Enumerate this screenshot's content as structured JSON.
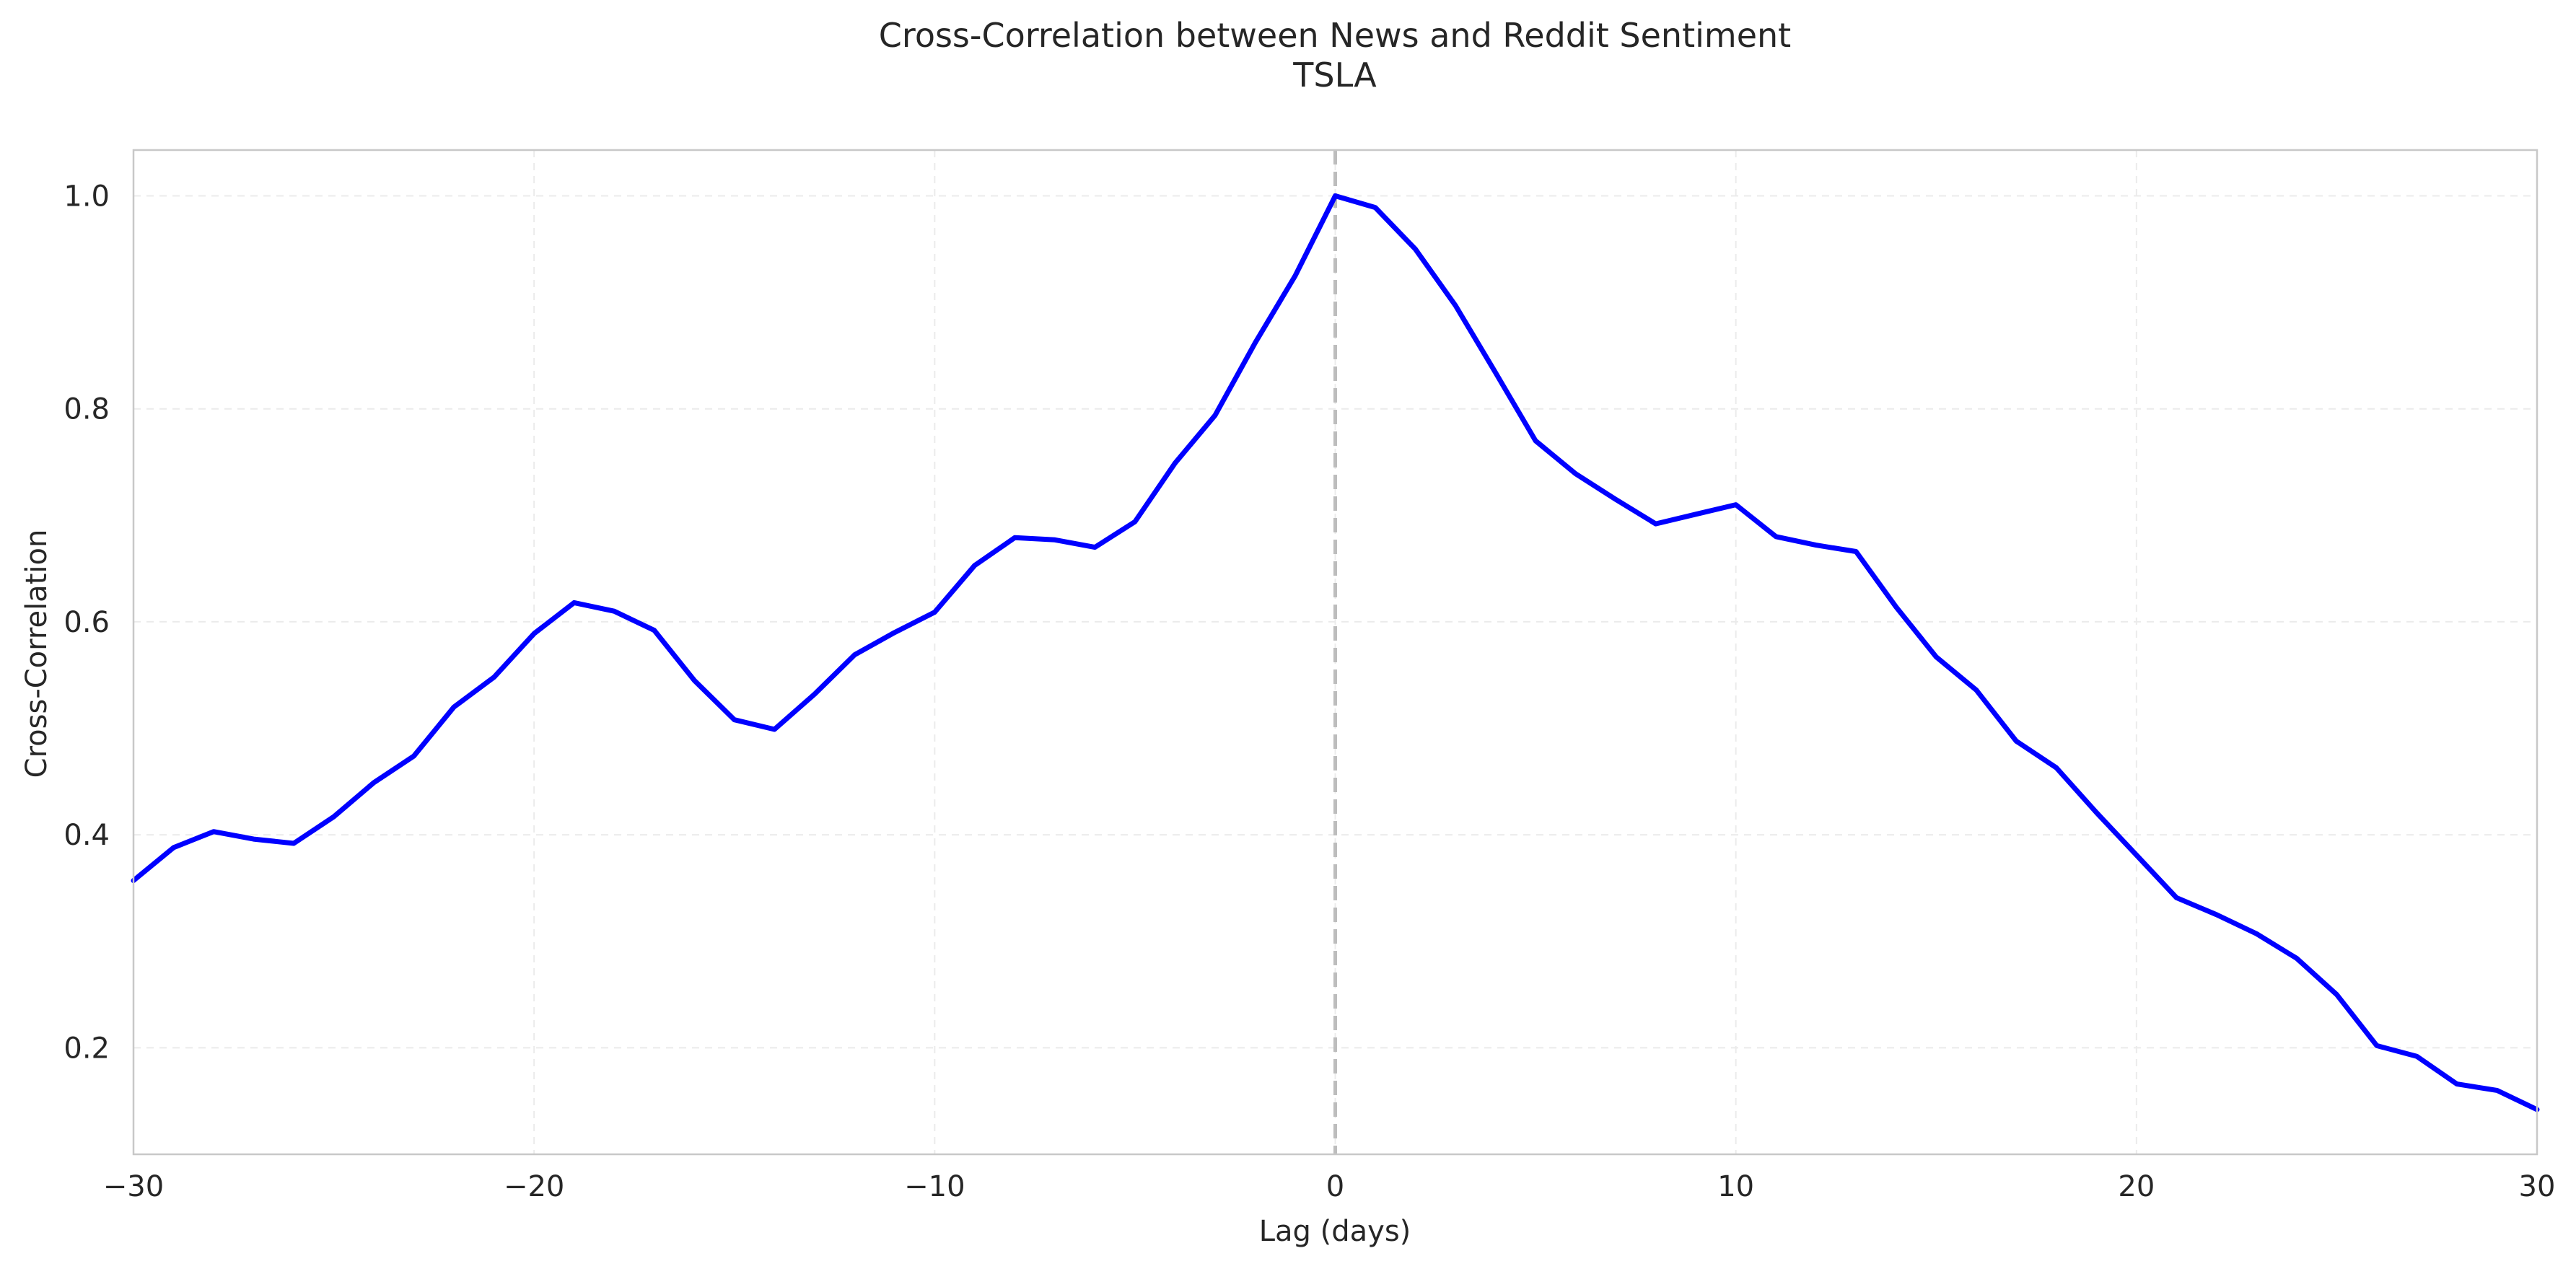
{
  "chart_data": {
    "type": "line",
    "title": "Cross-Correlation between News and Reddit Sentiment",
    "subtitle": "TSLA",
    "xlabel": "Lag (days)",
    "ylabel": "Cross-Correlation",
    "xlim": [
      -30,
      30
    ],
    "ylim": [
      0.1,
      1.043
    ],
    "xticks": [
      -30,
      -20,
      -10,
      0,
      10,
      20,
      30
    ],
    "xtick_labels": [
      "−30",
      "−20",
      "−10",
      "0",
      "10",
      "20",
      "30"
    ],
    "yticks": [
      0.2,
      0.4,
      0.6,
      0.8,
      1.0
    ],
    "ytick_labels": [
      "0.2",
      "0.4",
      "0.6",
      "0.8",
      "1.0"
    ],
    "grid": true,
    "reference_line": {
      "axis": "x",
      "value": 0,
      "style": "dashed",
      "color": "#bdbdbd"
    },
    "series": [
      {
        "color": "#0000ff",
        "x": [
          -30,
          -29,
          -28,
          -27,
          -26,
          -25,
          -24,
          -23,
          -22,
          -21,
          -20,
          -19,
          -18,
          -17,
          -16,
          -15,
          -14,
          -13,
          -12,
          -11,
          -10,
          -9,
          -8,
          -7,
          -6,
          -5,
          -4,
          -3,
          -2,
          -1,
          0,
          1,
          2,
          3,
          4,
          5,
          6,
          7,
          8,
          9,
          10,
          11,
          12,
          13,
          14,
          15,
          16,
          17,
          18,
          19,
          20,
          21,
          22,
          23,
          24,
          25,
          26,
          27,
          28,
          29,
          30
        ],
        "y": [
          0.357,
          0.388,
          0.403,
          0.396,
          0.392,
          0.417,
          0.449,
          0.474,
          0.52,
          0.548,
          0.589,
          0.618,
          0.61,
          0.592,
          0.545,
          0.508,
          0.499,
          0.532,
          0.569,
          0.59,
          0.609,
          0.653,
          0.679,
          0.677,
          0.67,
          0.694,
          0.749,
          0.794,
          0.862,
          0.925,
          1.0,
          0.989,
          0.95,
          0.897,
          0.834,
          0.77,
          0.739,
          0.715,
          0.692,
          0.701,
          0.71,
          0.68,
          0.672,
          0.666,
          0.614,
          0.567,
          0.536,
          0.488,
          0.463,
          0.421,
          0.381,
          0.341,
          0.325,
          0.307,
          0.284,
          0.25,
          0.202,
          0.192,
          0.166,
          0.16,
          0.142
        ]
      }
    ]
  }
}
